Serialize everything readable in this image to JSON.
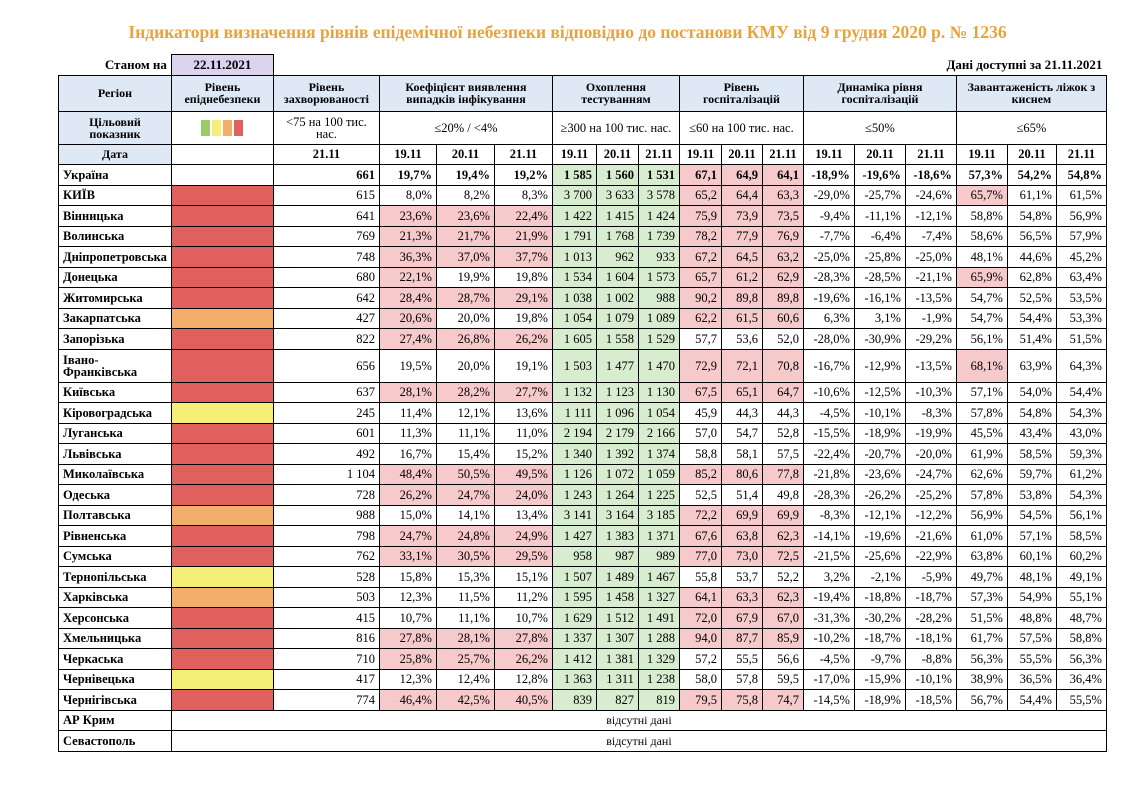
{
  "title": "Індикатори визначення рівнів епідемічної небезпеки відповідно до постанови КМУ від 9 грудня 2020 р. № 1236",
  "as_of_label": "Станом на",
  "as_of_date": "22.11.2021",
  "data_available_label": "Дані доступні за  21.11.2021",
  "headers": {
    "region": "Регіон",
    "level": "Рівень епіднебезпеки",
    "incidence": "Рівень захворюваності",
    "detection": "Коефіцієнт виявлення випадків інфікування",
    "testing": "Охоплення тестуванням",
    "hospitalization": "Рівень госпіталізацій",
    "hosp_dynamics": "Динаміка рівня госпіталізацій",
    "oxygen_beds": "Завантаженість ліжок з киснем"
  },
  "target_row": {
    "label": "Цільовий показник",
    "incidence": "<75 на 100 тис. нас.",
    "detection": "≤20% / <4%",
    "testing": "≥300 на 100 тис. нас.",
    "hospitalization": "≤60 на 100 тис. нас.",
    "hosp_dynamics": "≤50%",
    "oxygen_beds": "≤65%"
  },
  "date_row": {
    "label": "Дата",
    "incidence_date": "21.11",
    "dates": [
      "19.11",
      "20.11",
      "21.11"
    ]
  },
  "level_colors": {
    "red": "#e0605d",
    "orange": "#f2ae6a",
    "yellow": "#f5ef78",
    "green": "#9cc96a"
  },
  "rows": [
    {
      "region": "Україна",
      "level": "",
      "incidence": "661",
      "detection": [
        "19,7%",
        "19,4%",
        "19,2%"
      ],
      "testing": [
        "1 585",
        "1 560",
        "1 531"
      ],
      "hospitalization": [
        "67,1",
        "64,9",
        "64,1"
      ],
      "hosp_dynamics": [
        "-18,9%",
        "-19,6%",
        "-18,6%"
      ],
      "oxygen_beds": [
        "57,3%",
        "54,2%",
        "54,8%"
      ]
    },
    {
      "region": "КИЇВ",
      "level": "red",
      "incidence": "615",
      "detection": [
        "8,0%",
        "8,2%",
        "8,3%"
      ],
      "testing": [
        "3 700",
        "3 633",
        "3 578"
      ],
      "hospitalization": [
        "65,2",
        "64,4",
        "63,3"
      ],
      "hosp_dynamics": [
        "-29,0%",
        "-25,7%",
        "-24,6%"
      ],
      "oxygen_beds": [
        "65,7%",
        "61,1%",
        "61,5%"
      ]
    },
    {
      "region": "Вінницька",
      "level": "red",
      "incidence": "641",
      "detection": [
        "23,6%",
        "23,6%",
        "22,4%"
      ],
      "testing": [
        "1 422",
        "1 415",
        "1 424"
      ],
      "hospitalization": [
        "75,9",
        "73,9",
        "73,5"
      ],
      "hosp_dynamics": [
        "-9,4%",
        "-11,1%",
        "-12,1%"
      ],
      "oxygen_beds": [
        "58,8%",
        "54,8%",
        "56,9%"
      ]
    },
    {
      "region": "Волинська",
      "level": "red",
      "incidence": "769",
      "detection": [
        "21,3%",
        "21,7%",
        "21,9%"
      ],
      "testing": [
        "1 791",
        "1 768",
        "1 739"
      ],
      "hospitalization": [
        "78,2",
        "77,9",
        "76,9"
      ],
      "hosp_dynamics": [
        "-7,7%",
        "-6,4%",
        "-7,4%"
      ],
      "oxygen_beds": [
        "58,6%",
        "56,5%",
        "57,9%"
      ]
    },
    {
      "region": "Дніпропетровська",
      "level": "red",
      "incidence": "748",
      "detection": [
        "36,3%",
        "37,0%",
        "37,7%"
      ],
      "testing": [
        "1 013",
        "962",
        "933"
      ],
      "hospitalization": [
        "67,2",
        "64,5",
        "63,2"
      ],
      "hosp_dynamics": [
        "-25,0%",
        "-25,8%",
        "-25,0%"
      ],
      "oxygen_beds": [
        "48,1%",
        "44,6%",
        "45,2%"
      ]
    },
    {
      "region": "Донецька",
      "level": "red",
      "incidence": "680",
      "detection": [
        "22,1%",
        "19,9%",
        "19,8%"
      ],
      "testing": [
        "1 534",
        "1 604",
        "1 573"
      ],
      "hospitalization": [
        "65,7",
        "61,2",
        "62,9"
      ],
      "hosp_dynamics": [
        "-28,3%",
        "-28,5%",
        "-21,1%"
      ],
      "oxygen_beds": [
        "65,9%",
        "62,8%",
        "63,4%"
      ]
    },
    {
      "region": "Житомирська",
      "level": "red",
      "incidence": "642",
      "detection": [
        "28,4%",
        "28,7%",
        "29,1%"
      ],
      "testing": [
        "1 038",
        "1 002",
        "988"
      ],
      "hospitalization": [
        "90,2",
        "89,8",
        "89,8"
      ],
      "hosp_dynamics": [
        "-19,6%",
        "-16,1%",
        "-13,5%"
      ],
      "oxygen_beds": [
        "54,7%",
        "52,5%",
        "53,5%"
      ]
    },
    {
      "region": "Закарпатська",
      "level": "orange",
      "incidence": "427",
      "detection": [
        "20,6%",
        "20,0%",
        "19,8%"
      ],
      "testing": [
        "1 054",
        "1 079",
        "1 089"
      ],
      "hospitalization": [
        "62,2",
        "61,5",
        "60,6"
      ],
      "hosp_dynamics": [
        "6,3%",
        "3,1%",
        "-1,9%"
      ],
      "oxygen_beds": [
        "54,7%",
        "54,4%",
        "53,3%"
      ]
    },
    {
      "region": "Запорізька",
      "level": "red",
      "incidence": "822",
      "detection": [
        "27,4%",
        "26,8%",
        "26,2%"
      ],
      "testing": [
        "1 605",
        "1 558",
        "1 529"
      ],
      "hospitalization": [
        "57,7",
        "53,6",
        "52,0"
      ],
      "hosp_dynamics": [
        "-28,0%",
        "-30,9%",
        "-29,2%"
      ],
      "oxygen_beds": [
        "56,1%",
        "51,4%",
        "51,5%"
      ]
    },
    {
      "region": "Івано-Франківська",
      "level": "red",
      "incidence": "656",
      "detection": [
        "19,5%",
        "20,0%",
        "19,1%"
      ],
      "testing": [
        "1 503",
        "1 477",
        "1 470"
      ],
      "hospitalization": [
        "72,9",
        "72,1",
        "70,8"
      ],
      "hosp_dynamics": [
        "-16,7%",
        "-12,9%",
        "-13,5%"
      ],
      "oxygen_beds": [
        "68,1%",
        "63,9%",
        "64,3%"
      ]
    },
    {
      "region": "Київська",
      "level": "red",
      "incidence": "637",
      "detection": [
        "28,1%",
        "28,2%",
        "27,7%"
      ],
      "testing": [
        "1 132",
        "1 123",
        "1 130"
      ],
      "hospitalization": [
        "67,5",
        "65,1",
        "64,7"
      ],
      "hosp_dynamics": [
        "-10,6%",
        "-12,5%",
        "-10,3%"
      ],
      "oxygen_beds": [
        "57,1%",
        "54,0%",
        "54,4%"
      ]
    },
    {
      "region": "Кіровоградська",
      "level": "yellow",
      "incidence": "245",
      "detection": [
        "11,4%",
        "12,1%",
        "13,6%"
      ],
      "testing": [
        "1 111",
        "1 096",
        "1 054"
      ],
      "hospitalization": [
        "45,9",
        "44,3",
        "44,3"
      ],
      "hosp_dynamics": [
        "-4,5%",
        "-10,1%",
        "-8,3%"
      ],
      "oxygen_beds": [
        "57,8%",
        "54,8%",
        "54,3%"
      ]
    },
    {
      "region": "Луганська",
      "level": "red",
      "incidence": "601",
      "detection": [
        "11,3%",
        "11,1%",
        "11,0%"
      ],
      "testing": [
        "2 194",
        "2 179",
        "2 166"
      ],
      "hospitalization": [
        "57,0",
        "54,7",
        "52,8"
      ],
      "hosp_dynamics": [
        "-15,5%",
        "-18,9%",
        "-19,9%"
      ],
      "oxygen_beds": [
        "45,5%",
        "43,4%",
        "43,0%"
      ]
    },
    {
      "region": "Львівська",
      "level": "red",
      "incidence": "492",
      "detection": [
        "16,7%",
        "15,4%",
        "15,2%"
      ],
      "testing": [
        "1 340",
        "1 392",
        "1 374"
      ],
      "hospitalization": [
        "58,8",
        "58,1",
        "57,5"
      ],
      "hosp_dynamics": [
        "-22,4%",
        "-20,7%",
        "-20,0%"
      ],
      "oxygen_beds": [
        "61,9%",
        "58,5%",
        "59,3%"
      ]
    },
    {
      "region": "Миколаївська",
      "level": "red",
      "incidence": "1 104",
      "detection": [
        "48,4%",
        "50,5%",
        "49,5%"
      ],
      "testing": [
        "1 126",
        "1 072",
        "1 059"
      ],
      "hospitalization": [
        "85,2",
        "80,6",
        "77,8"
      ],
      "hosp_dynamics": [
        "-21,8%",
        "-23,6%",
        "-24,7%"
      ],
      "oxygen_beds": [
        "62,6%",
        "59,7%",
        "61,2%"
      ]
    },
    {
      "region": "Одеська",
      "level": "red",
      "incidence": "728",
      "detection": [
        "26,2%",
        "24,7%",
        "24,0%"
      ],
      "testing": [
        "1 243",
        "1 264",
        "1 225"
      ],
      "hospitalization": [
        "52,5",
        "51,4",
        "49,8"
      ],
      "hosp_dynamics": [
        "-28,3%",
        "-26,2%",
        "-25,2%"
      ],
      "oxygen_beds": [
        "57,8%",
        "53,8%",
        "54,3%"
      ]
    },
    {
      "region": "Полтавська",
      "level": "orange",
      "incidence": "988",
      "detection": [
        "15,0%",
        "14,1%",
        "13,4%"
      ],
      "testing": [
        "3 141",
        "3 164",
        "3 185"
      ],
      "hospitalization": [
        "72,2",
        "69,9",
        "69,9"
      ],
      "hosp_dynamics": [
        "-8,3%",
        "-12,1%",
        "-12,2%"
      ],
      "oxygen_beds": [
        "56,9%",
        "54,5%",
        "56,1%"
      ]
    },
    {
      "region": "Рівненська",
      "level": "red",
      "incidence": "798",
      "detection": [
        "24,7%",
        "24,8%",
        "24,9%"
      ],
      "testing": [
        "1 427",
        "1 383",
        "1 371"
      ],
      "hospitalization": [
        "67,6",
        "63,8",
        "62,3"
      ],
      "hosp_dynamics": [
        "-14,1%",
        "-19,6%",
        "-21,6%"
      ],
      "oxygen_beds": [
        "61,0%",
        "57,1%",
        "58,5%"
      ]
    },
    {
      "region": "Сумська",
      "level": "red",
      "incidence": "762",
      "detection": [
        "33,1%",
        "30,5%",
        "29,5%"
      ],
      "testing": [
        "958",
        "987",
        "989"
      ],
      "hospitalization": [
        "77,0",
        "73,0",
        "72,5"
      ],
      "hosp_dynamics": [
        "-21,5%",
        "-25,6%",
        "-22,9%"
      ],
      "oxygen_beds": [
        "63,8%",
        "60,1%",
        "60,2%"
      ]
    },
    {
      "region": "Тернопільська",
      "level": "yellow",
      "incidence": "528",
      "detection": [
        "15,8%",
        "15,3%",
        "15,1%"
      ],
      "testing": [
        "1 507",
        "1 489",
        "1 467"
      ],
      "hospitalization": [
        "55,8",
        "53,7",
        "52,2"
      ],
      "hosp_dynamics": [
        "3,2%",
        "-2,1%",
        "-5,9%"
      ],
      "oxygen_beds": [
        "49,7%",
        "48,1%",
        "49,1%"
      ]
    },
    {
      "region": "Харківська",
      "level": "orange",
      "incidence": "503",
      "detection": [
        "12,3%",
        "11,5%",
        "11,2%"
      ],
      "testing": [
        "1 595",
        "1 458",
        "1 327"
      ],
      "hospitalization": [
        "64,1",
        "63,3",
        "62,3"
      ],
      "hosp_dynamics": [
        "-19,4%",
        "-18,8%",
        "-18,7%"
      ],
      "oxygen_beds": [
        "57,3%",
        "54,9%",
        "55,1%"
      ]
    },
    {
      "region": "Херсонська",
      "level": "red",
      "incidence": "415",
      "detection": [
        "10,7%",
        "11,1%",
        "10,7%"
      ],
      "testing": [
        "1 629",
        "1 512",
        "1 491"
      ],
      "hospitalization": [
        "72,0",
        "67,9",
        "67,0"
      ],
      "hosp_dynamics": [
        "-31,3%",
        "-30,2%",
        "-28,2%"
      ],
      "oxygen_beds": [
        "51,5%",
        "48,8%",
        "48,7%"
      ]
    },
    {
      "region": "Хмельницька",
      "level": "red",
      "incidence": "816",
      "detection": [
        "27,8%",
        "28,1%",
        "27,8%"
      ],
      "testing": [
        "1 337",
        "1 307",
        "1 288"
      ],
      "hospitalization": [
        "94,0",
        "87,7",
        "85,9"
      ],
      "hosp_dynamics": [
        "-10,2%",
        "-18,7%",
        "-18,1%"
      ],
      "oxygen_beds": [
        "61,7%",
        "57,5%",
        "58,8%"
      ]
    },
    {
      "region": "Черкаська",
      "level": "red",
      "incidence": "710",
      "detection": [
        "25,8%",
        "25,7%",
        "26,2%"
      ],
      "testing": [
        "1 412",
        "1 381",
        "1 329"
      ],
      "hospitalization": [
        "57,2",
        "55,5",
        "56,6"
      ],
      "hosp_dynamics": [
        "-4,5%",
        "-9,7%",
        "-8,8%"
      ],
      "oxygen_beds": [
        "56,3%",
        "55,5%",
        "56,3%"
      ]
    },
    {
      "region": "Чернівецька",
      "level": "yellow",
      "incidence": "417",
      "detection": [
        "12,3%",
        "12,4%",
        "12,8%"
      ],
      "testing": [
        "1 363",
        "1 311",
        "1 238"
      ],
      "hospitalization": [
        "58,0",
        "57,8",
        "59,5"
      ],
      "hosp_dynamics": [
        "-17,0%",
        "-15,9%",
        "-10,1%"
      ],
      "oxygen_beds": [
        "38,9%",
        "36,5%",
        "36,4%"
      ]
    },
    {
      "region": "Чернігівська",
      "level": "red",
      "incidence": "774",
      "detection": [
        "46,4%",
        "42,5%",
        "40,5%"
      ],
      "testing": [
        "839",
        "827",
        "819"
      ],
      "hospitalization": [
        "79,5",
        "75,8",
        "74,7"
      ],
      "hosp_dynamics": [
        "-14,5%",
        "-18,9%",
        "-18,5%"
      ],
      "oxygen_beds": [
        "56,7%",
        "54,4%",
        "55,5%"
      ]
    }
  ],
  "missing_rows": [
    {
      "region": "АР Крим",
      "text": "відсутні дані"
    },
    {
      "region": "Севастополь",
      "text": "відсутні дані"
    }
  ]
}
